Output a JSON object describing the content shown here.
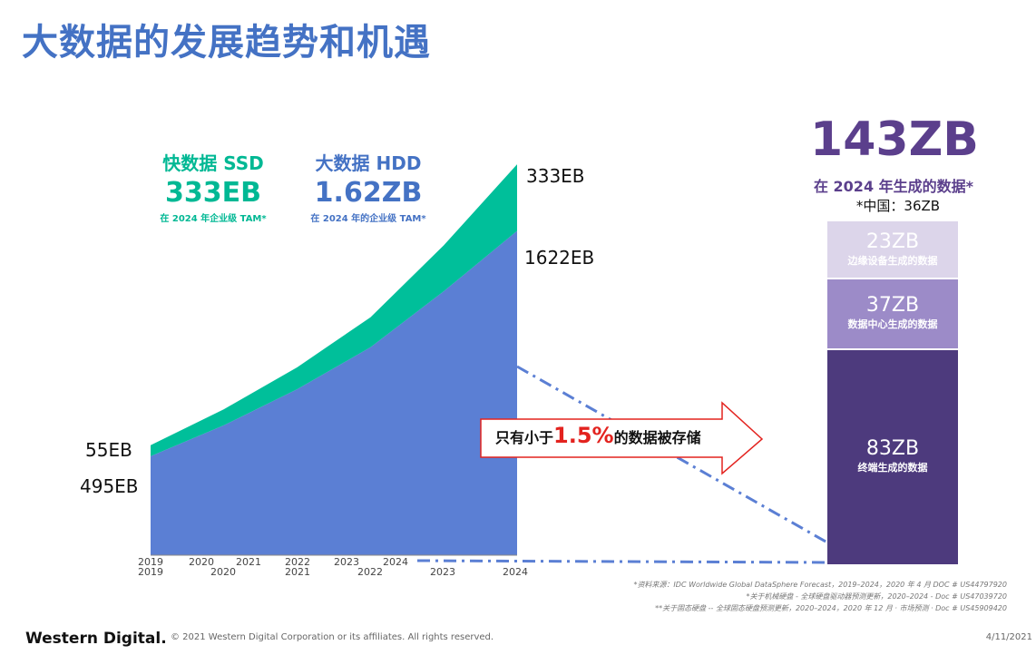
{
  "title": "大数据的发展趋势和机遇",
  "ssd": {
    "title": "快数据 SSD",
    "value": "333EB",
    "sub": "在 2024 年企业级 TAM*"
  },
  "hdd": {
    "title": "大数据 HDD",
    "value": "1.62ZB",
    "sub": "在 2024 年的企业级 TAM*"
  },
  "chart_data": [
    {
      "type": "area",
      "x": [
        "2019",
        "2020",
        "2021",
        "2022",
        "2023",
        "2024"
      ],
      "x_labels_top": [
        "2019",
        "2020",
        "2021",
        "2022",
        "2023",
        "2024"
      ],
      "x_labels_bottom": [
        "2019",
        "2020",
        "2021",
        "2022",
        "2023",
        "2024"
      ],
      "series": [
        {
          "name": "大数据 HDD",
          "color": "#5b7fd4",
          "values": [
            495,
            650,
            830,
            1040,
            1320,
            1622
          ]
        },
        {
          "name": "快数据 SSD",
          "color": "#00bf9a",
          "values": [
            55,
            80,
            110,
            150,
            230,
            333
          ]
        }
      ],
      "value_labels": {
        "ssd_start": "55EB",
        "hdd_start": "495EB",
        "ssd_end": "333EB",
        "hdd_end": "1622EB"
      }
    },
    {
      "type": "bar",
      "title": "143ZB",
      "subtitle": "在 2024 年生成的数据*",
      "note": "*中国：36ZB",
      "segments": [
        {
          "value": 23,
          "value_label": "23ZB",
          "label": "边缘设备生成的数据",
          "color": "#dcd5ea"
        },
        {
          "value": 37,
          "value_label": "37ZB",
          "label": "数据中心生成的数据",
          "color": "#9c8bc8"
        },
        {
          "value": 83,
          "value_label": "83ZB",
          "label": "终端生成的数据",
          "color": "#4d3a7d"
        }
      ]
    }
  ],
  "callout": {
    "pre": "只有小于",
    "pct": "1.5%",
    "post": "的数据被存储",
    "border_color": "#e3231f"
  },
  "footnotes": [
    "*资料来源：IDC Worldwide Global DataSphere Forecast，2019–2024，2020 年 4 月 DOC # US44797920",
    "*关于机械硬盘 - 全球硬盘驱动器预测更新，2020–2024 - Doc # US47039720",
    "**关于固态硬盘 -- 全球固态硬盘预测更新，2020–2024，2020 年 12 月 · 市场预测 · Doc # US45909420"
  ],
  "footer": {
    "logo": "Western Digital.",
    "copyright": "© 2021 Western Digital Corporation or its affiliates. All rights reserved.",
    "date": "4/11/2021"
  }
}
